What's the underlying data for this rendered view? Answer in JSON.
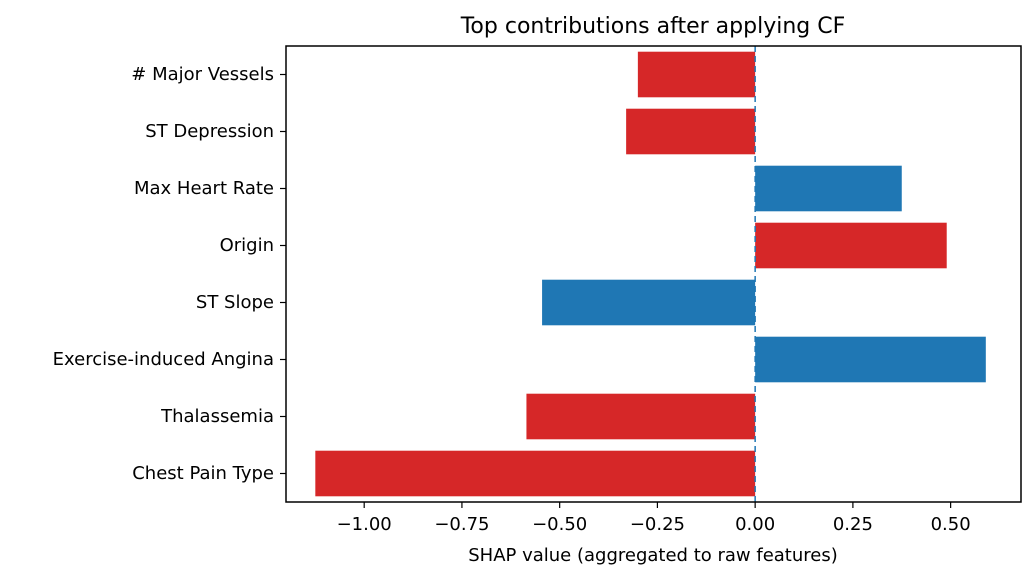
{
  "chart_data": {
    "type": "bar",
    "orientation": "horizontal",
    "title": "Top contributions after applying CF",
    "xlabel": "SHAP value (aggregated to raw features)",
    "ylabel": "",
    "xlim": [
      -1.2,
      0.68
    ],
    "xticks": [
      -1.0,
      -0.75,
      -0.5,
      -0.25,
      0.0,
      0.25,
      0.5
    ],
    "xtick_labels": [
      "−1.00",
      "−0.75",
      "−0.50",
      "−0.25",
      "0.00",
      "0.25",
      "0.50"
    ],
    "reference_line": {
      "x": 0.0,
      "style": "dashed",
      "color": "#1f77b4"
    },
    "grid": false,
    "colors": {
      "red": "#d62728",
      "blue": "#1f77b4"
    },
    "categories": [
      "# Major Vessels",
      "ST Depression",
      "Max Heart Rate",
      "Origin",
      "ST Slope",
      "Exercise-induced Angina",
      "Thalassemia",
      "Chest Pain Type"
    ],
    "values": [
      -0.3,
      -0.33,
      0.375,
      0.49,
      -0.545,
      0.59,
      -0.585,
      -1.125
    ],
    "bar_colors": [
      "red",
      "red",
      "blue",
      "red",
      "blue",
      "blue",
      "red",
      "red"
    ]
  }
}
